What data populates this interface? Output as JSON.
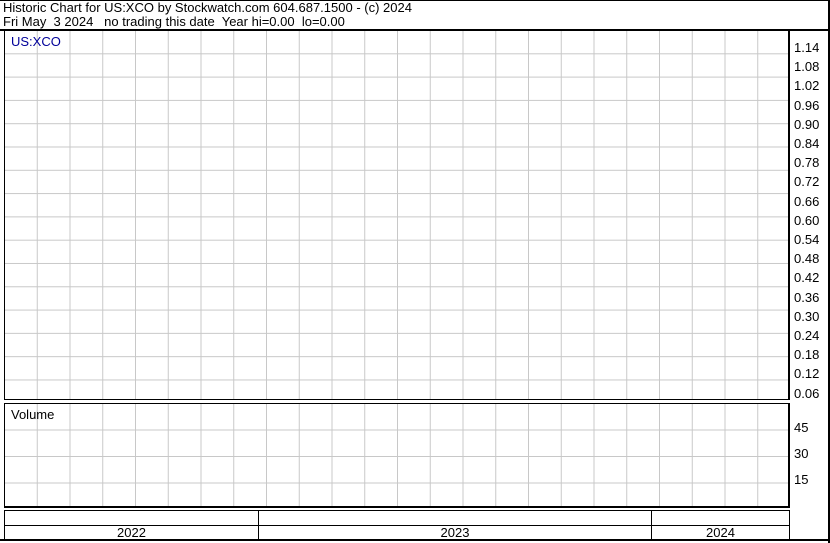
{
  "header": {
    "title": "Historic Chart for US:XCO by Stockwatch.com 604.687.1500 - (c) 2024",
    "subtitle": "Fri May  3 2024   no trading this date  Year hi=0.00  lo=0.00"
  },
  "chart_data": {
    "type": "line",
    "title": "Historic Chart for US:XCO",
    "symbol": "US:XCO",
    "date_label": "Fri May  3 2024",
    "status_note": "no trading this date",
    "year_hi": "0.00",
    "year_lo": "0.00",
    "series": [],
    "price_panel": {
      "label": "US:XCO",
      "y_ticks": [
        "1.14",
        "1.08",
        "1.02",
        "0.96",
        "0.90",
        "0.84",
        "0.78",
        "0.72",
        "0.66",
        "0.60",
        "0.54",
        "0.48",
        "0.42",
        "0.36",
        "0.30",
        "0.24",
        "0.18",
        "0.12",
        "0.06"
      ],
      "ylim": [
        0.04,
        1.19
      ],
      "axis_position": "right",
      "grid": true,
      "data_points": []
    },
    "volume_panel": {
      "label": "Volume",
      "y_ticks": [
        "45",
        "30",
        "15"
      ],
      "ylim": [
        0,
        60
      ],
      "grid": true,
      "values": []
    },
    "x_axis": {
      "years": [
        "2022",
        "2023",
        "2024"
      ],
      "range": "mid-2022 to May 2024",
      "gridlines": "monthly",
      "month_labels": []
    }
  },
  "colors": {
    "background": "#ffffff",
    "border": "#000000",
    "grid": "#c8c8c8",
    "symbol_text": "#000099"
  }
}
